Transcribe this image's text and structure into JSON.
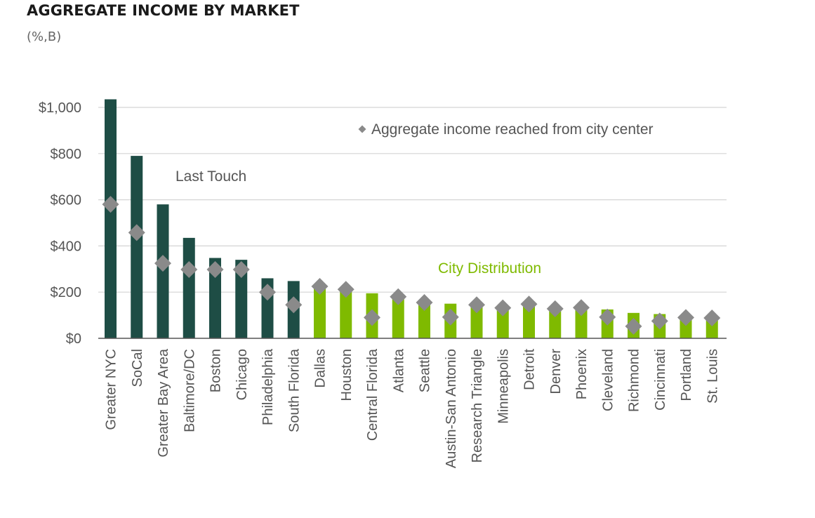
{
  "header": {
    "title": "AGGREGATE INCOME BY MARKET",
    "subtitle": "(%,B)"
  },
  "annotations": {
    "last_touch": "Last Touch",
    "city_distribution": "City Distribution"
  },
  "colors": {
    "last_touch": "#1e4d45",
    "city_distribution": "#7fba00",
    "marker": "#8a8a8a",
    "grid": "#d4d4d4",
    "axis": "#555555",
    "text": "#555555"
  },
  "chart_data": {
    "type": "bar",
    "title": "AGGREGATE INCOME BY MARKET",
    "subtitle": "(%,B)",
    "xlabel": "",
    "ylabel": "",
    "ylim": [
      0,
      1000
    ],
    "yticks": [
      0,
      200,
      400,
      600,
      800,
      1000
    ],
    "ytick_labels": [
      "$0",
      "$200",
      "$400",
      "$600",
      "$800",
      "$1,000"
    ],
    "grid": true,
    "legend_position": "top-right",
    "categories": [
      "Greater NYC",
      "SoCal",
      "Greater Bay Area",
      "Baltimore/DC",
      "Boston",
      "Chicago",
      "Philadelphia",
      "South Florida",
      "Dallas",
      "Houston",
      "Central Florida",
      "Atlanta",
      "Seattle",
      "Austin-San Antonio",
      "Research Triangle",
      "Minneapolis",
      "Detroit",
      "Denver",
      "Phoenix",
      "Cleveland",
      "Richmond",
      "Cincinnati",
      "Portland",
      "St. Louis"
    ],
    "groups": [
      "Last Touch",
      "Last Touch",
      "Last Touch",
      "Last Touch",
      "Last Touch",
      "Last Touch",
      "Last Touch",
      "Last Touch",
      "City Distribution",
      "City Distribution",
      "City Distribution",
      "City Distribution",
      "City Distribution",
      "City Distribution",
      "City Distribution",
      "City Distribution",
      "City Distribution",
      "City Distribution",
      "City Distribution",
      "City Distribution",
      "City Distribution",
      "City Distribution",
      "City Distribution",
      "City Distribution"
    ],
    "series": [
      {
        "values": [
          1035,
          790,
          580,
          435,
          348,
          340,
          260,
          248,
          215,
          205,
          195,
          178,
          150,
          150,
          148,
          140,
          138,
          135,
          135,
          125,
          110,
          105,
          90,
          90
        ]
      },
      {
        "name": "Aggregate income reached from city center",
        "marker": "diamond",
        "values": [
          580,
          458,
          325,
          298,
          298,
          298,
          200,
          145,
          225,
          212,
          90,
          180,
          155,
          92,
          145,
          132,
          148,
          128,
          133,
          92,
          52,
          75,
          90,
          88
        ]
      }
    ]
  }
}
